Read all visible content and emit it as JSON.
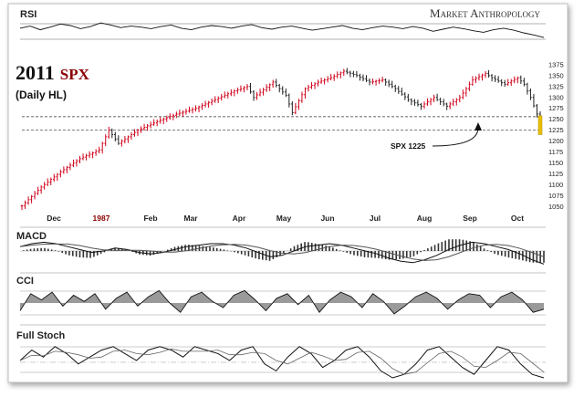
{
  "watermark": "Market Anthropology",
  "colors": {
    "up": "#d0021b",
    "down": "#222222",
    "title_accent": "#8b0000",
    "highlight": "#e8c000"
  },
  "chart_data": [
    {
      "type": "line",
      "panel": "rsi",
      "label": "RSI",
      "values": [
        58,
        62,
        55,
        60,
        66,
        63,
        57,
        61,
        68,
        64,
        59,
        62,
        60,
        57,
        61,
        64,
        58,
        55,
        60,
        63,
        61,
        58,
        62,
        65,
        59,
        56,
        60,
        62,
        58,
        54,
        57,
        60,
        63,
        58,
        55,
        59,
        62,
        60,
        57,
        61,
        58,
        52,
        56,
        60,
        57,
        53,
        50,
        55,
        58,
        54,
        49,
        45,
        40
      ]
    },
    {
      "type": "bar",
      "panel": "price",
      "title": "2011",
      "title_symbol": "SPX",
      "subtitle": "(Daily HL)",
      "x_tick_labels": [
        "Dec",
        "1987",
        "Feb",
        "Mar",
        "Apr",
        "May",
        "Jun",
        "Jul",
        "Aug",
        "Sep",
        "Oct"
      ],
      "y_ticks": [
        1050,
        1075,
        1100,
        1125,
        1150,
        1175,
        1200,
        1225,
        1250,
        1275,
        1300,
        1325,
        1350,
        1375
      ],
      "ylim": [
        1045,
        1385
      ],
      "reference_lines": [
        1256,
        1225
      ],
      "annotation": "SPX 1225",
      "anchors": [
        [
          0,
          1052
        ],
        [
          6,
          1095
        ],
        [
          12,
          1130
        ],
        [
          18,
          1160
        ],
        [
          24,
          1180
        ],
        [
          27,
          1225
        ],
        [
          30,
          1195
        ],
        [
          36,
          1225
        ],
        [
          42,
          1245
        ],
        [
          48,
          1262
        ],
        [
          54,
          1275
        ],
        [
          60,
          1295
        ],
        [
          66,
          1315
        ],
        [
          70,
          1325
        ],
        [
          72,
          1300
        ],
        [
          78,
          1335
        ],
        [
          82,
          1305
        ],
        [
          84,
          1265
        ],
        [
          88,
          1320
        ],
        [
          92,
          1335
        ],
        [
          96,
          1345
        ],
        [
          100,
          1360
        ],
        [
          104,
          1350
        ],
        [
          108,
          1335
        ],
        [
          112,
          1340
        ],
        [
          116,
          1320
        ],
        [
          120,
          1295
        ],
        [
          124,
          1280
        ],
        [
          128,
          1300
        ],
        [
          132,
          1280
        ],
        [
          136,
          1300
        ],
        [
          140,
          1340
        ],
        [
          144,
          1355
        ],
        [
          146,
          1345
        ],
        [
          150,
          1330
        ],
        [
          154,
          1345
        ],
        [
          156,
          1330
        ],
        [
          158,
          1300
        ],
        [
          160,
          1262
        ],
        [
          161,
          1238
        ]
      ]
    },
    {
      "type": "line",
      "panel": "macd",
      "label": "MACD",
      "values": [
        0.3,
        0.5,
        0.6,
        0.5,
        0.3,
        0.1,
        -0.1,
        0.0,
        0.2,
        0.1,
        -0.1,
        -0.2,
        -0.1,
        0.1,
        0.3,
        0.4,
        0.5,
        0.5,
        0.4,
        0.2,
        -0.1,
        -0.4,
        -0.3,
        0.0,
        0.3,
        0.4,
        0.5,
        0.4,
        0.2,
        0.0,
        -0.2,
        -0.5,
        -0.7,
        -0.8,
        -0.6,
        -0.3,
        0.1,
        0.4,
        0.6,
        0.5,
        0.3,
        0.1,
        -0.2,
        -0.6,
        -0.9
      ]
    },
    {
      "type": "line",
      "panel": "cci",
      "label": "CCI",
      "values": [
        -0.5,
        0.6,
        0.2,
        0.7,
        -0.2,
        0.5,
        0.1,
        0.6,
        -0.4,
        0.3,
        0.7,
        -0.2,
        0.4,
        0.8,
        0.0,
        -0.6,
        0.4,
        0.7,
        0.1,
        -0.3,
        0.5,
        0.8,
        0.2,
        -0.5,
        0.3,
        0.6,
        -0.1,
        0.5,
        -0.6,
        0.2,
        0.7,
        0.4,
        -0.3,
        0.6,
        0.1,
        -0.7,
        -0.2,
        0.4,
        0.7,
        0.3,
        -0.4,
        0.2,
        0.6,
        0.5,
        -0.3,
        0.4,
        0.7,
        0.2,
        -0.6,
        -0.4
      ]
    },
    {
      "type": "line",
      "panel": "stoch",
      "label": "Full Stoch",
      "values": [
        0.5,
        0.8,
        0.6,
        0.9,
        0.7,
        0.4,
        0.6,
        0.8,
        0.9,
        0.7,
        0.5,
        0.8,
        0.9,
        0.8,
        0.6,
        0.9,
        0.8,
        0.7,
        0.5,
        0.8,
        0.9,
        0.4,
        0.2,
        0.6,
        0.9,
        0.7,
        0.3,
        0.5,
        0.8,
        0.9,
        0.6,
        0.2,
        0.0,
        0.1,
        0.4,
        0.8,
        0.9,
        0.6,
        0.3,
        0.1,
        0.5,
        0.9,
        0.8,
        0.4,
        0.1,
        0.0
      ]
    }
  ]
}
